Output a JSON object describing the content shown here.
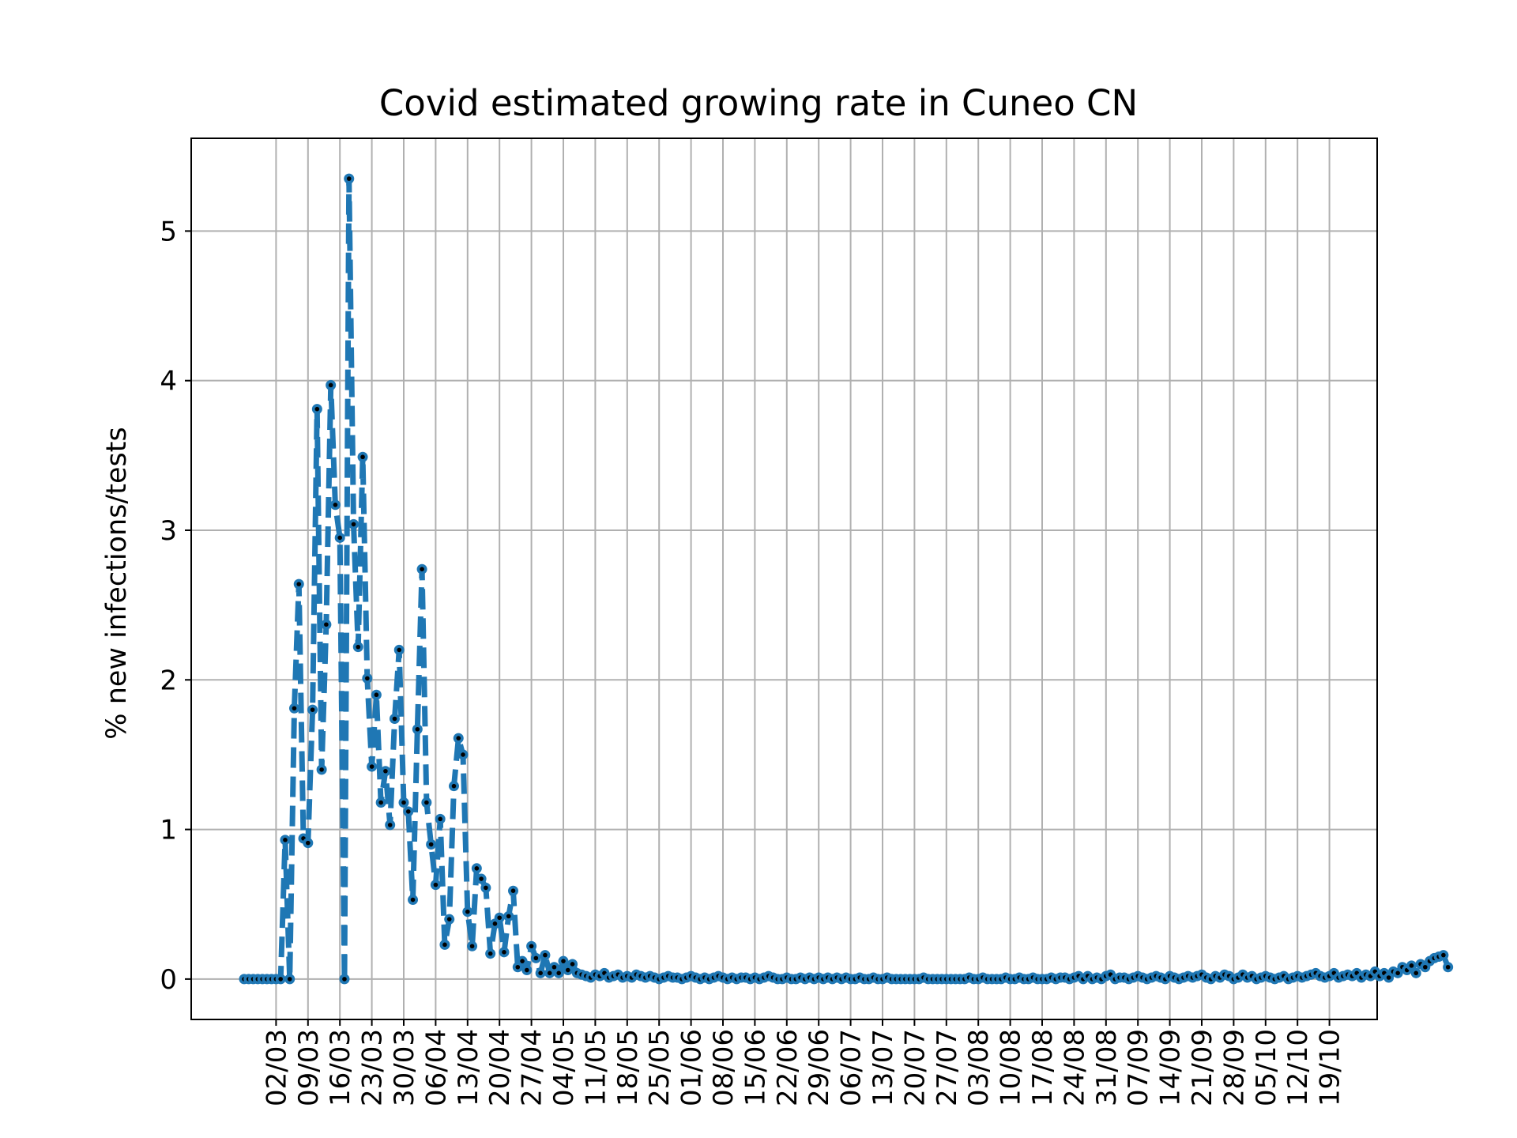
{
  "chart_data": {
    "type": "line",
    "title": "Covid estimated growing rate in Cuneo CN",
    "xlabel": "",
    "ylabel": "% new infections/tests",
    "x_tick_labels": [
      "02/03",
      "09/03",
      "16/03",
      "23/03",
      "30/03",
      "06/04",
      "13/04",
      "20/04",
      "27/04",
      "04/05",
      "11/05",
      "18/05",
      "25/05",
      "01/06",
      "08/06",
      "15/06",
      "22/06",
      "29/06",
      "06/07",
      "13/07",
      "20/07",
      "27/07",
      "03/08",
      "10/08",
      "17/08",
      "24/08",
      "31/08",
      "07/09",
      "14/09",
      "21/09",
      "28/09",
      "05/10",
      "12/10",
      "19/10"
    ],
    "y_ticks": [
      0,
      1,
      2,
      3,
      4,
      5
    ],
    "ylim": [
      -0.27,
      5.62
    ],
    "grid": true,
    "line_style": "dashed",
    "marker": "point",
    "color": "#1f77b4",
    "marker_color": "#000000",
    "series": [
      {
        "name": "",
        "first_date": "24/02",
        "values": [
          0,
          0,
          0,
          0,
          0,
          0,
          0,
          0,
          0,
          0.93,
          0,
          1.81,
          2.64,
          0.94,
          0.91,
          1.8,
          3.81,
          1.4,
          2.37,
          3.97,
          3.17,
          2.95,
          0,
          5.35,
          3.04,
          2.22,
          3.49,
          2.01,
          1.42,
          1.9,
          1.18,
          1.39,
          1.03,
          1.74,
          2.2,
          1.18,
          1.12,
          0.53,
          1.67,
          2.74,
          1.18,
          0.9,
          0.63,
          1.07,
          0.23,
          0.4,
          1.29,
          1.61,
          1.5,
          0.45,
          0.22,
          0.74,
          0.67,
          0.61,
          0.17,
          0.37,
          0.41,
          0.18,
          0.42,
          0.59,
          0.08,
          0.12,
          0.06,
          0.22,
          0.14,
          0.04,
          0.16,
          0.04,
          0.08,
          0.04,
          0.12,
          0.06,
          0.1,
          0.04,
          0.03,
          0.02,
          0.01,
          0.03,
          0.02,
          0.04,
          0.01,
          0.02,
          0.03,
          0.01,
          0.02,
          0.01,
          0.03,
          0.02,
          0.01,
          0.02,
          0.01,
          0,
          0.01,
          0.02,
          0.01,
          0.01,
          0,
          0.01,
          0.02,
          0.01,
          0,
          0.01,
          0,
          0.01,
          0.02,
          0.01,
          0,
          0.01,
          0,
          0.01,
          0.01,
          0,
          0.01,
          0,
          0.01,
          0.02,
          0.01,
          0,
          0,
          0.01,
          0,
          0,
          0.01,
          0,
          0.01,
          0,
          0.01,
          0,
          0.01,
          0,
          0.01,
          0,
          0.01,
          0,
          0,
          0.01,
          0,
          0,
          0.01,
          0,
          0,
          0.01,
          0,
          0,
          0,
          0,
          0,
          0,
          0,
          0.01,
          0,
          0,
          0,
          0,
          0,
          0,
          0,
          0,
          0,
          0.01,
          0,
          0,
          0.01,
          0,
          0,
          0,
          0,
          0.01,
          0,
          0,
          0.01,
          0,
          0,
          0.01,
          0,
          0,
          0,
          0.01,
          0,
          0.01,
          0.01,
          0,
          0.01,
          0.02,
          0,
          0.02,
          0,
          0.01,
          0,
          0.02,
          0.03,
          0,
          0.01,
          0.01,
          0,
          0.01,
          0.02,
          0.01,
          0,
          0.01,
          0.02,
          0.01,
          0,
          0.02,
          0.01,
          0,
          0.01,
          0.02,
          0.01,
          0.02,
          0.03,
          0.01,
          0,
          0.02,
          0.01,
          0.03,
          0.02,
          0,
          0.01,
          0.03,
          0.01,
          0.02,
          0,
          0.01,
          0.02,
          0.01,
          0,
          0.01,
          0.02,
          0,
          0.01,
          0.02,
          0.01,
          0.02,
          0.03,
          0.04,
          0.02,
          0.01,
          0.02,
          0.04,
          0.01,
          0.02,
          0.03,
          0.02,
          0.04,
          0.01,
          0.03,
          0.02,
          0.05,
          0.02,
          0.04,
          0.01,
          0.05,
          0.04,
          0.08,
          0.06,
          0.09,
          0.04,
          0.1,
          0.08,
          0.12,
          0.14,
          0.15,
          0.16,
          0.08
        ]
      }
    ]
  }
}
